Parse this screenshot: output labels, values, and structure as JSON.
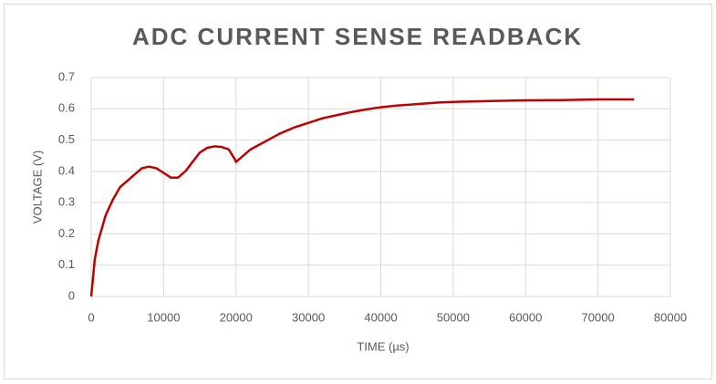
{
  "chart_data": {
    "type": "line",
    "title": "ADC CURRENT SENSE READBACK",
    "x_label": "TIME (µs)",
    "y_label": "VOLTAGE (V)",
    "x": [
      0,
      500,
      1000,
      2000,
      3000,
      4000,
      5000,
      6000,
      7000,
      8000,
      9000,
      10000,
      11000,
      12000,
      13000,
      14000,
      15000,
      16000,
      17000,
      18000,
      19000,
      19800,
      20000,
      21000,
      22000,
      24000,
      26000,
      28000,
      30000,
      32000,
      34000,
      36000,
      38000,
      40000,
      42000,
      45000,
      48000,
      50000,
      55000,
      60000,
      65000,
      70000,
      75000
    ],
    "series": [
      {
        "name": "Voltage",
        "color": "#c00000",
        "values": [
          0,
          0.12,
          0.18,
          0.26,
          0.31,
          0.35,
          0.37,
          0.39,
          0.41,
          0.415,
          0.41,
          0.395,
          0.38,
          0.38,
          0.4,
          0.43,
          0.46,
          0.475,
          0.48,
          0.478,
          0.47,
          0.44,
          0.43,
          0.45,
          0.47,
          0.495,
          0.52,
          0.54,
          0.555,
          0.57,
          0.58,
          0.59,
          0.598,
          0.605,
          0.61,
          0.615,
          0.62,
          0.622,
          0.625,
          0.627,
          0.628,
          0.63,
          0.63
        ]
      }
    ],
    "xlim": [
      0,
      80000
    ],
    "xticks": [
      0,
      10000,
      20000,
      30000,
      40000,
      50000,
      60000,
      70000,
      80000
    ],
    "ylim": [
      0,
      0.7
    ],
    "yticks": [
      0,
      0.1,
      0.2,
      0.3,
      0.4,
      0.5,
      0.6,
      0.7
    ],
    "grid": true
  }
}
